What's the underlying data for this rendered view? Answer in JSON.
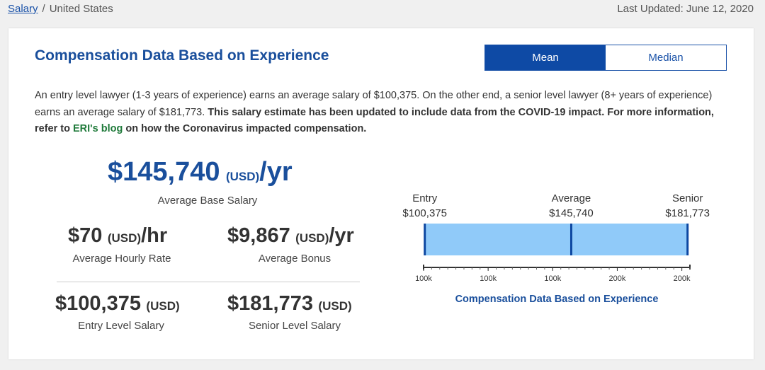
{
  "breadcrumb": {
    "root": "Salary",
    "separator": "/",
    "current": "United States"
  },
  "last_updated": "Last Updated: June 12, 2020",
  "card": {
    "title": "Compensation Data Based on Experience",
    "toggle": {
      "mean": "Mean",
      "median": "Median",
      "selected": "Mean"
    },
    "description": {
      "p1": "An entry level lawyer (1-3 years of experience) earns an average salary of $100,375. On the other end, a senior level lawyer (8+ years of experience) earns an average salary of $181,773.",
      "p2": "This salary estimate has been updated to include data from the COVID-19 impact. For more information, refer to",
      "link": "ERI's blog",
      "p3": "on how the Coronavirus impacted compensation."
    },
    "base_salary": {
      "amount": "$145,740",
      "currency": "(USD)",
      "period": "/yr",
      "label": "Average Base Salary"
    },
    "hourly": {
      "amount": "$70",
      "currency": "(USD)",
      "period": "/hr",
      "label": "Average Hourly Rate"
    },
    "bonus": {
      "amount": "$9,867",
      "currency": "(USD)",
      "period": "/yr",
      "label": "Average Bonus"
    },
    "entry": {
      "amount": "$100,375",
      "currency": "(USD)",
      "label": "Entry Level Salary"
    },
    "senior": {
      "amount": "$181,773",
      "currency": "(USD)",
      "label": "Senior Level Salary"
    }
  },
  "chart_data": {
    "type": "bar",
    "title": "Compensation Data Based on Experience",
    "markers": [
      {
        "label": "Entry",
        "value_label": "$100,375",
        "value": 100375
      },
      {
        "label": "Average",
        "value_label": "$145,740",
        "value": 145740
      },
      {
        "label": "Senior",
        "value_label": "$181,773",
        "value": 181773
      }
    ],
    "range": [
      100375,
      181773
    ],
    "ticks": [
      "100k",
      "100k",
      "100k",
      "200k",
      "200k"
    ],
    "tick_values": [
      100000,
      120000,
      140000,
      160000,
      180000
    ],
    "xlim": [
      100000,
      182500
    ],
    "colors": {
      "fill": "#90caf9",
      "marker": "#0d47a1",
      "axis": "#333333",
      "title": "#1a4f9c"
    }
  }
}
